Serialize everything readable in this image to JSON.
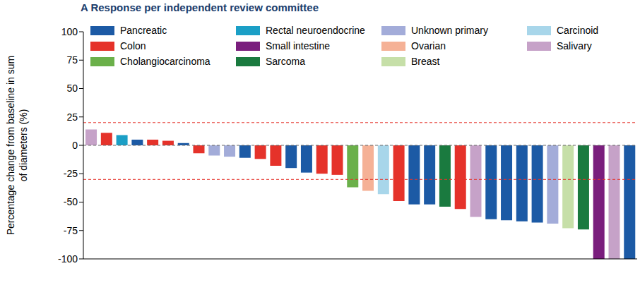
{
  "chart_data": {
    "type": "bar",
    "title": "A Response per independent review committee",
    "ylabel": "Percentage change from baseline in sum of diameters (%)",
    "categories": [
      null,
      null,
      null,
      null,
      null,
      null,
      null,
      null,
      null,
      null,
      null,
      null,
      null,
      null,
      null,
      null,
      null,
      null,
      null,
      null,
      null,
      null,
      null,
      null,
      null,
      null,
      null,
      null,
      null,
      null,
      null,
      null,
      null,
      null,
      null,
      null
    ],
    "series": [
      {
        "name": "Pancreatic",
        "color": "#1c5aa5",
        "values": [
          null,
          null,
          null,
          5,
          null,
          null,
          2,
          null,
          null,
          null,
          -11,
          null,
          null,
          -20,
          -24,
          null,
          null,
          null,
          null,
          null,
          null,
          -52,
          -52,
          null,
          null,
          null,
          -65,
          -66,
          -67,
          -68,
          null,
          null,
          null,
          null,
          null,
          -100
        ]
      },
      {
        "name": "Colon",
        "color": "#e5322a",
        "values": [
          null,
          11,
          null,
          null,
          5,
          4,
          null,
          -7,
          null,
          null,
          null,
          -12,
          -18,
          null,
          null,
          -25,
          -26,
          null,
          null,
          null,
          -49,
          null,
          null,
          null,
          -56,
          null,
          null,
          null,
          null,
          null,
          null,
          null,
          null,
          null,
          null,
          null
        ]
      },
      {
        "name": "Cholangiocarcinoma",
        "color": "#6bb04a",
        "values": [
          null,
          null,
          null,
          null,
          null,
          null,
          null,
          null,
          null,
          null,
          null,
          null,
          null,
          null,
          null,
          null,
          null,
          -37,
          null,
          null,
          null,
          null,
          null,
          null,
          null,
          null,
          null,
          null,
          null,
          null,
          null,
          null,
          null,
          null,
          null,
          null
        ]
      },
      {
        "name": "Rectal neuroendocrine",
        "color": "#1b9fc6",
        "values": [
          null,
          null,
          9,
          null,
          null,
          null,
          null,
          null,
          null,
          null,
          null,
          null,
          null,
          null,
          null,
          null,
          null,
          null,
          null,
          null,
          null,
          null,
          null,
          null,
          null,
          null,
          null,
          null,
          null,
          null,
          null,
          null,
          null,
          null,
          null,
          null
        ]
      },
      {
        "name": "Small intestine",
        "color": "#7a1e7d",
        "values": [
          null,
          null,
          null,
          null,
          null,
          null,
          null,
          null,
          null,
          null,
          null,
          null,
          null,
          null,
          null,
          null,
          null,
          null,
          null,
          null,
          null,
          null,
          null,
          null,
          null,
          null,
          null,
          null,
          null,
          null,
          null,
          null,
          null,
          -100,
          null,
          null
        ]
      },
      {
        "name": "Sarcoma",
        "color": "#1a7a3f",
        "values": [
          null,
          null,
          null,
          null,
          null,
          null,
          null,
          null,
          null,
          null,
          null,
          null,
          null,
          null,
          null,
          null,
          null,
          null,
          null,
          null,
          null,
          null,
          null,
          -54,
          null,
          null,
          null,
          null,
          null,
          null,
          null,
          null,
          -74,
          null,
          null,
          null
        ]
      },
      {
        "name": "Unknown primary",
        "color": "#a3acd9",
        "values": [
          null,
          null,
          null,
          null,
          null,
          null,
          null,
          null,
          -9,
          -10,
          null,
          null,
          null,
          null,
          null,
          null,
          null,
          null,
          null,
          null,
          null,
          null,
          null,
          null,
          null,
          null,
          null,
          null,
          null,
          null,
          -69,
          null,
          null,
          null,
          null,
          null
        ]
      },
      {
        "name": "Ovarian",
        "color": "#f5b196",
        "values": [
          null,
          null,
          null,
          null,
          null,
          null,
          null,
          null,
          null,
          null,
          null,
          null,
          null,
          null,
          null,
          null,
          null,
          null,
          -40,
          null,
          null,
          null,
          null,
          null,
          null,
          null,
          null,
          null,
          null,
          null,
          null,
          null,
          null,
          null,
          null,
          null
        ]
      },
      {
        "name": "Breast",
        "color": "#c6dfa8",
        "values": [
          null,
          null,
          null,
          null,
          null,
          null,
          null,
          null,
          null,
          null,
          null,
          null,
          null,
          null,
          null,
          null,
          null,
          null,
          null,
          null,
          null,
          null,
          null,
          null,
          null,
          null,
          null,
          null,
          null,
          null,
          null,
          -73,
          null,
          null,
          null,
          null
        ]
      },
      {
        "name": "Carcinoid",
        "color": "#a8d6ea",
        "values": [
          null,
          null,
          null,
          null,
          null,
          null,
          null,
          null,
          null,
          null,
          null,
          null,
          null,
          null,
          null,
          null,
          null,
          null,
          null,
          -43,
          null,
          null,
          null,
          null,
          null,
          null,
          null,
          null,
          null,
          null,
          null,
          null,
          null,
          null,
          null,
          null
        ]
      },
      {
        "name": "Salivary",
        "color": "#c6a2c8",
        "values": [
          14,
          null,
          null,
          null,
          null,
          null,
          null,
          null,
          null,
          null,
          null,
          null,
          null,
          null,
          null,
          null,
          null,
          null,
          null,
          null,
          null,
          null,
          null,
          null,
          null,
          -63,
          null,
          null,
          null,
          null,
          null,
          null,
          null,
          null,
          -100,
          null
        ]
      }
    ],
    "reference_lines": [
      20,
      0,
      -30
    ],
    "ylim": [
      -100,
      100
    ],
    "yticks": [
      -100,
      -75,
      -50,
      -25,
      0,
      25,
      50,
      75,
      100
    ],
    "stacked": true,
    "legend": "top",
    "tick_labels": "y"
  }
}
